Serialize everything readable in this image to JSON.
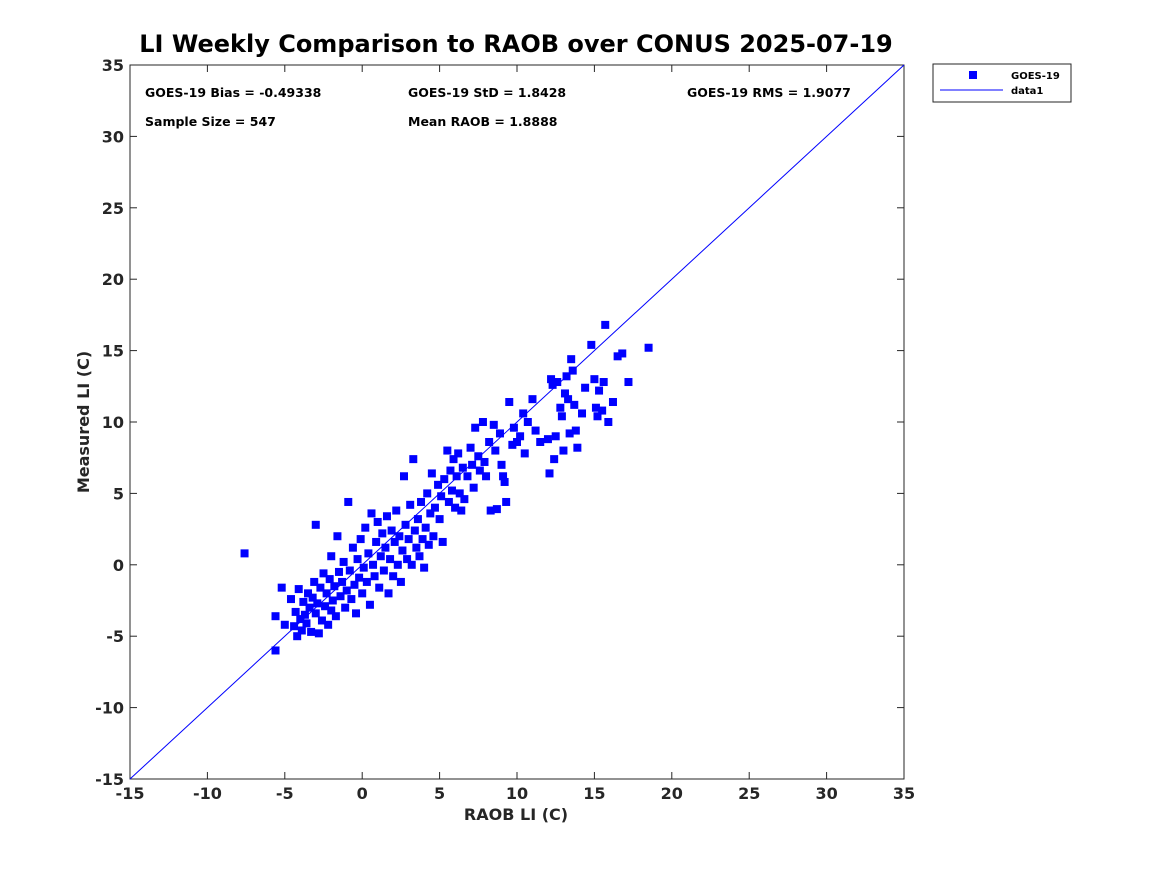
{
  "chart_data": {
    "type": "scatter",
    "title": "LI Weekly Comparison to RAOB over CONUS 2025-07-19",
    "xlabel": "RAOB LI (C)",
    "ylabel": "Measured LI (C)",
    "xlim": [
      -15,
      35
    ],
    "ylim": [
      -15,
      35
    ],
    "xticks": [
      -15,
      -10,
      -5,
      0,
      5,
      10,
      15,
      20,
      25,
      30,
      35
    ],
    "yticks": [
      -15,
      -10,
      -5,
      0,
      5,
      10,
      15,
      20,
      25,
      30,
      35
    ],
    "grid": false,
    "legend_position": "outside-top-right",
    "colors": {
      "series": "#0000ff",
      "line": "#0000ff",
      "axes": "#262626"
    },
    "stats": {
      "bias": "GOES-19 Bias = -0.49338",
      "std": "GOES-19 StD = 1.8428",
      "rms": "GOES-19 RMS = 1.9077",
      "sample_size": "Sample Size = 547",
      "mean_raob": "Mean RAOB = 1.8888"
    },
    "series": [
      {
        "name": "GOES-19",
        "marker": "square",
        "points": [
          [
            -7.6,
            0.8
          ],
          [
            -5.6,
            -6.0
          ],
          [
            -5.6,
            -3.6
          ],
          [
            -5.2,
            -1.6
          ],
          [
            -5.0,
            -4.2
          ],
          [
            -4.6,
            -2.4
          ],
          [
            -4.4,
            -4.3
          ],
          [
            -4.3,
            -3.3
          ],
          [
            -4.2,
            -5.0
          ],
          [
            -4.1,
            -1.7
          ],
          [
            -4.0,
            -3.8
          ],
          [
            -3.9,
            -4.6
          ],
          [
            -3.8,
            -2.6
          ],
          [
            -3.7,
            -3.5
          ],
          [
            -3.6,
            -4.1
          ],
          [
            -3.5,
            -2.0
          ],
          [
            -3.4,
            -3.0
          ],
          [
            -3.3,
            -4.7
          ],
          [
            -3.2,
            -2.3
          ],
          [
            -3.1,
            -1.2
          ],
          [
            -3.0,
            2.8
          ],
          [
            -3.0,
            -3.4
          ],
          [
            -2.9,
            -2.7
          ],
          [
            -2.8,
            -4.8
          ],
          [
            -2.7,
            -1.6
          ],
          [
            -2.6,
            -3.9
          ],
          [
            -2.5,
            -0.6
          ],
          [
            -2.4,
            -2.9
          ],
          [
            -2.3,
            -2.0
          ],
          [
            -2.2,
            -4.2
          ],
          [
            -2.1,
            -1.0
          ],
          [
            -2.0,
            -3.2
          ],
          [
            -2.0,
            0.6
          ],
          [
            -1.9,
            -2.5
          ],
          [
            -1.8,
            -1.5
          ],
          [
            -1.7,
            -3.6
          ],
          [
            -1.6,
            2.0
          ],
          [
            -1.5,
            -0.5
          ],
          [
            -1.4,
            -2.2
          ],
          [
            -1.3,
            -1.2
          ],
          [
            -1.2,
            0.2
          ],
          [
            -1.1,
            -3.0
          ],
          [
            -1.0,
            -1.8
          ],
          [
            -0.9,
            4.4
          ],
          [
            -0.8,
            -0.4
          ],
          [
            -0.7,
            -2.4
          ],
          [
            -0.6,
            1.2
          ],
          [
            -0.5,
            -1.4
          ],
          [
            -0.4,
            -3.4
          ],
          [
            -0.3,
            0.4
          ],
          [
            -0.2,
            -0.9
          ],
          [
            -0.1,
            1.8
          ],
          [
            0.0,
            -2.0
          ],
          [
            0.1,
            -0.2
          ],
          [
            0.2,
            2.6
          ],
          [
            0.3,
            -1.2
          ],
          [
            0.4,
            0.8
          ],
          [
            0.5,
            -2.8
          ],
          [
            0.6,
            3.6
          ],
          [
            0.7,
            0.0
          ],
          [
            0.8,
            -0.8
          ],
          [
            0.9,
            1.6
          ],
          [
            1.0,
            3.0
          ],
          [
            1.1,
            -1.6
          ],
          [
            1.2,
            0.6
          ],
          [
            1.3,
            2.2
          ],
          [
            1.4,
            -0.4
          ],
          [
            1.5,
            1.2
          ],
          [
            1.6,
            3.4
          ],
          [
            1.7,
            -2.0
          ],
          [
            1.8,
            0.4
          ],
          [
            1.9,
            2.4
          ],
          [
            2.0,
            -0.8
          ],
          [
            2.1,
            1.6
          ],
          [
            2.2,
            3.8
          ],
          [
            2.3,
            0.0
          ],
          [
            2.4,
            2.0
          ],
          [
            2.5,
            -1.2
          ],
          [
            2.6,
            1.0
          ],
          [
            2.7,
            6.2
          ],
          [
            2.8,
            2.8
          ],
          [
            2.9,
            0.4
          ],
          [
            3.0,
            1.8
          ],
          [
            3.1,
            4.2
          ],
          [
            3.2,
            0.0
          ],
          [
            3.3,
            7.4
          ],
          [
            3.4,
            2.4
          ],
          [
            3.5,
            1.2
          ],
          [
            3.6,
            3.2
          ],
          [
            3.7,
            0.6
          ],
          [
            3.8,
            4.4
          ],
          [
            3.9,
            1.8
          ],
          [
            4.0,
            -0.2
          ],
          [
            4.1,
            2.6
          ],
          [
            4.2,
            5.0
          ],
          [
            4.3,
            1.4
          ],
          [
            4.4,
            3.6
          ],
          [
            4.5,
            6.4
          ],
          [
            4.6,
            2.0
          ],
          [
            4.7,
            4.0
          ],
          [
            4.9,
            5.6
          ],
          [
            5.0,
            3.2
          ],
          [
            5.1,
            4.8
          ],
          [
            5.2,
            1.6
          ],
          [
            5.3,
            6.0
          ],
          [
            5.5,
            8.0
          ],
          [
            5.6,
            4.4
          ],
          [
            5.7,
            6.6
          ],
          [
            5.8,
            5.2
          ],
          [
            5.9,
            7.4
          ],
          [
            6.0,
            4.0
          ],
          [
            6.1,
            6.2
          ],
          [
            6.2,
            7.8
          ],
          [
            6.3,
            5.0
          ],
          [
            6.4,
            3.8
          ],
          [
            6.5,
            6.8
          ],
          [
            6.6,
            4.6
          ],
          [
            6.8,
            6.2
          ],
          [
            7.0,
            8.2
          ],
          [
            7.1,
            7.0
          ],
          [
            7.2,
            5.4
          ],
          [
            7.3,
            9.6
          ],
          [
            7.5,
            7.6
          ],
          [
            7.6,
            6.6
          ],
          [
            7.8,
            10.0
          ],
          [
            7.9,
            7.2
          ],
          [
            8.0,
            6.2
          ],
          [
            8.2,
            8.6
          ],
          [
            8.3,
            3.8
          ],
          [
            8.5,
            9.8
          ],
          [
            8.6,
            8.0
          ],
          [
            8.7,
            3.9
          ],
          [
            8.9,
            9.2
          ],
          [
            9.0,
            7.0
          ],
          [
            9.1,
            6.2
          ],
          [
            9.2,
            5.8
          ],
          [
            9.3,
            4.4
          ],
          [
            9.5,
            11.4
          ],
          [
            9.7,
            8.4
          ],
          [
            9.8,
            9.6
          ],
          [
            10.0,
            8.6
          ],
          [
            10.2,
            9.0
          ],
          [
            10.4,
            10.6
          ],
          [
            10.5,
            7.8
          ],
          [
            10.7,
            10.0
          ],
          [
            11.0,
            11.6
          ],
          [
            11.2,
            9.4
          ],
          [
            11.5,
            8.6
          ],
          [
            12.0,
            8.8
          ],
          [
            12.1,
            6.4
          ],
          [
            12.2,
            13.0
          ],
          [
            12.3,
            12.6
          ],
          [
            12.4,
            7.4
          ],
          [
            12.5,
            9.0
          ],
          [
            12.6,
            12.8
          ],
          [
            12.8,
            11.0
          ],
          [
            12.9,
            10.4
          ],
          [
            13.0,
            8.0
          ],
          [
            13.1,
            12.0
          ],
          [
            13.2,
            13.2
          ],
          [
            13.3,
            11.6
          ],
          [
            13.4,
            9.2
          ],
          [
            13.5,
            14.4
          ],
          [
            13.6,
            13.6
          ],
          [
            13.7,
            11.2
          ],
          [
            13.8,
            9.4
          ],
          [
            13.9,
            8.2
          ],
          [
            14.2,
            10.6
          ],
          [
            14.4,
            12.4
          ],
          [
            14.8,
            15.4
          ],
          [
            15.0,
            13.0
          ],
          [
            15.1,
            11.0
          ],
          [
            15.2,
            10.4
          ],
          [
            15.3,
            12.2
          ],
          [
            15.5,
            10.8
          ],
          [
            15.6,
            12.8
          ],
          [
            15.7,
            16.8
          ],
          [
            15.9,
            10.0
          ],
          [
            16.2,
            11.4
          ],
          [
            16.5,
            14.6
          ],
          [
            16.8,
            14.8
          ],
          [
            17.2,
            12.8
          ],
          [
            18.5,
            15.2
          ]
        ]
      },
      {
        "name": "data1",
        "type": "line",
        "points": [
          [
            -15,
            -15
          ],
          [
            35,
            35
          ]
        ]
      }
    ]
  }
}
